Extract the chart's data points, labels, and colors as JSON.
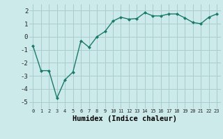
{
  "x": [
    0,
    1,
    2,
    3,
    4,
    5,
    6,
    7,
    8,
    9,
    10,
    11,
    12,
    13,
    14,
    15,
    16,
    17,
    18,
    19,
    20,
    21,
    22,
    23
  ],
  "y": [
    -0.7,
    -2.6,
    -2.6,
    -4.7,
    -3.3,
    -2.7,
    -0.3,
    -0.8,
    0.0,
    0.4,
    1.2,
    1.5,
    1.35,
    1.4,
    1.85,
    1.6,
    1.6,
    1.75,
    1.75,
    1.45,
    1.1,
    1.0,
    1.5,
    1.75
  ],
  "line_color": "#1a7a6a",
  "marker": "D",
  "marker_size": 2.0,
  "line_width": 1.0,
  "xlabel": "Humidex (Indice chaleur)",
  "xlabel_fontsize": 7.5,
  "bg_color": "#cceaea",
  "grid_color": "#aacccc",
  "tick_color": "#222222",
  "ylim": [
    -5.5,
    2.5
  ],
  "yticks": [
    -5,
    -4,
    -3,
    -2,
    -1,
    0,
    1,
    2
  ],
  "xlim": [
    -0.5,
    23.5
  ],
  "xticks": [
    0,
    1,
    2,
    3,
    4,
    5,
    6,
    7,
    8,
    9,
    10,
    11,
    12,
    13,
    14,
    15,
    16,
    17,
    18,
    19,
    20,
    21,
    22,
    23
  ],
  "xtick_fontsize": 5.0,
  "ytick_fontsize": 6.5
}
